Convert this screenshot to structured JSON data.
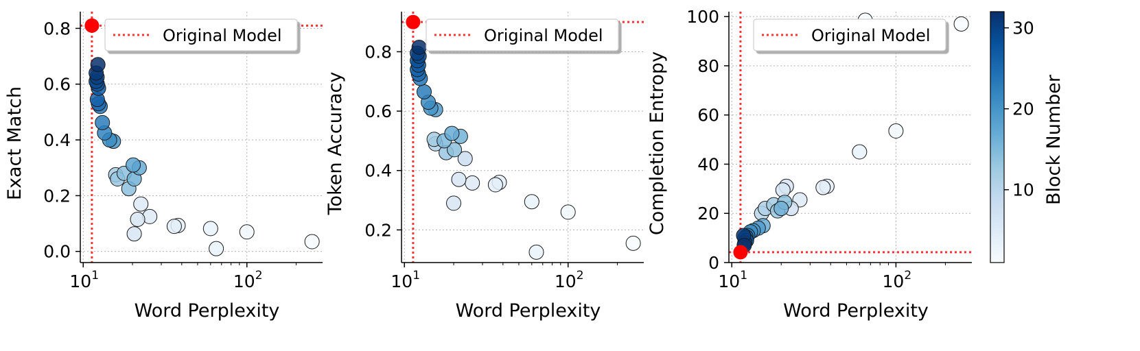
{
  "colorbar": {
    "label": "Block Number",
    "ticks": [
      10,
      20,
      30
    ],
    "range": [
      1,
      32
    ],
    "colormap": [
      "#f7fbff",
      "#deebf7",
      "#c6dbef",
      "#9ecae1",
      "#6baed6",
      "#4292c6",
      "#2171b5",
      "#08519c",
      "#08306b"
    ]
  },
  "reference_color": "#ff0000",
  "chart_data": [
    {
      "type": "scatter",
      "xlabel": "Word Perplexity",
      "ylabel": "Exact Match",
      "xscale": "log",
      "xlim": [
        9.6,
        290
      ],
      "ylim": [
        -0.04,
        0.86
      ],
      "yticks": [
        "0.0",
        "0.2",
        "0.4",
        "0.6",
        "0.8"
      ],
      "grid": true,
      "legend": {
        "label": "Original Model",
        "placement": "top"
      },
      "reference": {
        "x": 11.3,
        "y": 0.81
      },
      "points": [
        {
          "x": 250,
          "y": 0.035,
          "c": 1
        },
        {
          "x": 100,
          "y": 0.07,
          "c": 2
        },
        {
          "x": 65,
          "y": 0.01,
          "c": 3
        },
        {
          "x": 60,
          "y": 0.082,
          "c": 3
        },
        {
          "x": 38,
          "y": 0.093,
          "c": 4
        },
        {
          "x": 36,
          "y": 0.09,
          "c": 4
        },
        {
          "x": 25.5,
          "y": 0.125,
          "c": 5
        },
        {
          "x": 22.5,
          "y": 0.17,
          "c": 5
        },
        {
          "x": 21.5,
          "y": 0.115,
          "c": 6
        },
        {
          "x": 20.5,
          "y": 0.063,
          "c": 6
        },
        {
          "x": 15.8,
          "y": 0.275,
          "c": 12
        },
        {
          "x": 16.2,
          "y": 0.26,
          "c": 13
        },
        {
          "x": 17.8,
          "y": 0.28,
          "c": 14
        },
        {
          "x": 19,
          "y": 0.225,
          "c": 14
        },
        {
          "x": 20.5,
          "y": 0.26,
          "c": 16
        },
        {
          "x": 22,
          "y": 0.3,
          "c": 17
        },
        {
          "x": 20.2,
          "y": 0.31,
          "c": 18
        },
        {
          "x": 15.3,
          "y": 0.395,
          "c": 20
        },
        {
          "x": 14.5,
          "y": 0.4,
          "c": 21
        },
        {
          "x": 13.5,
          "y": 0.425,
          "c": 22
        },
        {
          "x": 13.1,
          "y": 0.462,
          "c": 23
        },
        {
          "x": 12.7,
          "y": 0.52,
          "c": 24
        },
        {
          "x": 12.4,
          "y": 0.53,
          "c": 25
        },
        {
          "x": 12.2,
          "y": 0.545,
          "c": 26
        },
        {
          "x": 12.4,
          "y": 0.585,
          "c": 27
        },
        {
          "x": 12.2,
          "y": 0.6,
          "c": 28
        },
        {
          "x": 12.0,
          "y": 0.61,
          "c": 29
        },
        {
          "x": 12.15,
          "y": 0.625,
          "c": 30
        },
        {
          "x": 12.0,
          "y": 0.64,
          "c": 31
        },
        {
          "x": 12.3,
          "y": 0.67,
          "c": 32
        }
      ]
    },
    {
      "type": "scatter",
      "xlabel": "Word Perplexity",
      "ylabel": "Token Accuracy",
      "xscale": "log",
      "xlim": [
        9.6,
        290
      ],
      "ylim": [
        0.09,
        0.935
      ],
      "yticks": [
        "0.2",
        "0.4",
        "0.6",
        "0.8"
      ],
      "grid": true,
      "legend": {
        "label": "Original Model",
        "placement": "top"
      },
      "reference": {
        "x": 11.3,
        "y": 0.9
      },
      "points": [
        {
          "x": 250,
          "y": 0.155,
          "c": 1
        },
        {
          "x": 100,
          "y": 0.26,
          "c": 2
        },
        {
          "x": 64,
          "y": 0.125,
          "c": 3
        },
        {
          "x": 60,
          "y": 0.295,
          "c": 3
        },
        {
          "x": 38,
          "y": 0.36,
          "c": 4
        },
        {
          "x": 36,
          "y": 0.352,
          "c": 4
        },
        {
          "x": 26,
          "y": 0.358,
          "c": 5
        },
        {
          "x": 21.5,
          "y": 0.37,
          "c": 6
        },
        {
          "x": 20,
          "y": 0.29,
          "c": 6
        },
        {
          "x": 23.5,
          "y": 0.44,
          "c": 8
        },
        {
          "x": 15.5,
          "y": 0.49,
          "c": 11
        },
        {
          "x": 15.2,
          "y": 0.505,
          "c": 12
        },
        {
          "x": 18,
          "y": 0.46,
          "c": 13
        },
        {
          "x": 20.2,
          "y": 0.47,
          "c": 14
        },
        {
          "x": 17.5,
          "y": 0.5,
          "c": 15
        },
        {
          "x": 22,
          "y": 0.515,
          "c": 16
        },
        {
          "x": 19.5,
          "y": 0.525,
          "c": 17
        },
        {
          "x": 15.5,
          "y": 0.605,
          "c": 19
        },
        {
          "x": 14.5,
          "y": 0.61,
          "c": 20
        },
        {
          "x": 14,
          "y": 0.63,
          "c": 21
        },
        {
          "x": 13.2,
          "y": 0.665,
          "c": 23
        },
        {
          "x": 12.5,
          "y": 0.71,
          "c": 24
        },
        {
          "x": 12.2,
          "y": 0.725,
          "c": 25
        },
        {
          "x": 12.0,
          "y": 0.74,
          "c": 26
        },
        {
          "x": 12.2,
          "y": 0.755,
          "c": 27
        },
        {
          "x": 12.0,
          "y": 0.77,
          "c": 28
        },
        {
          "x": 12.3,
          "y": 0.785,
          "c": 29
        },
        {
          "x": 12.0,
          "y": 0.795,
          "c": 30
        },
        {
          "x": 12.3,
          "y": 0.815,
          "c": 32
        }
      ]
    },
    {
      "type": "scatter",
      "xlabel": "Word Perplexity",
      "ylabel": "Completion Entropy",
      "xscale": "log",
      "xlim": [
        9.6,
        290
      ],
      "ylim": [
        0,
        102
      ],
      "yticks": [
        "0",
        "20",
        "40",
        "60",
        "80",
        "100"
      ],
      "grid": true,
      "legend": {
        "label": "Original Model",
        "placement": "top"
      },
      "reference": {
        "x": 11.3,
        "y": 4.2
      },
      "points": [
        {
          "x": 250,
          "y": 97,
          "c": 1
        },
        {
          "x": 65,
          "y": 98.5,
          "c": 1
        },
        {
          "x": 100,
          "y": 53.5,
          "c": 2
        },
        {
          "x": 60,
          "y": 45,
          "c": 3
        },
        {
          "x": 38,
          "y": 31,
          "c": 4
        },
        {
          "x": 36,
          "y": 30.5,
          "c": 4
        },
        {
          "x": 26,
          "y": 25.5,
          "c": 5
        },
        {
          "x": 21.5,
          "y": 31,
          "c": 6
        },
        {
          "x": 20.5,
          "y": 29.5,
          "c": 6
        },
        {
          "x": 23,
          "y": 22,
          "c": 7
        },
        {
          "x": 15.2,
          "y": 20,
          "c": 10
        },
        {
          "x": 16,
          "y": 22,
          "c": 11
        },
        {
          "x": 18,
          "y": 23.5,
          "c": 12
        },
        {
          "x": 19,
          "y": 21,
          "c": 13
        },
        {
          "x": 21,
          "y": 24.5,
          "c": 14
        },
        {
          "x": 20,
          "y": 22,
          "c": 16
        },
        {
          "x": 15.5,
          "y": 15,
          "c": 17
        },
        {
          "x": 14.5,
          "y": 14,
          "c": 19
        },
        {
          "x": 13.5,
          "y": 13,
          "c": 20
        },
        {
          "x": 13,
          "y": 12.5,
          "c": 21
        },
        {
          "x": 12.5,
          "y": 11,
          "c": 23
        },
        {
          "x": 12.2,
          "y": 10.5,
          "c": 25
        },
        {
          "x": 12.0,
          "y": 10,
          "c": 26
        },
        {
          "x": 12.3,
          "y": 9,
          "c": 28
        },
        {
          "x": 12.0,
          "y": 8,
          "c": 30
        },
        {
          "x": 11.8,
          "y": 11,
          "c": 31
        },
        {
          "x": 11.9,
          "y": 7,
          "c": 32
        }
      ]
    }
  ]
}
